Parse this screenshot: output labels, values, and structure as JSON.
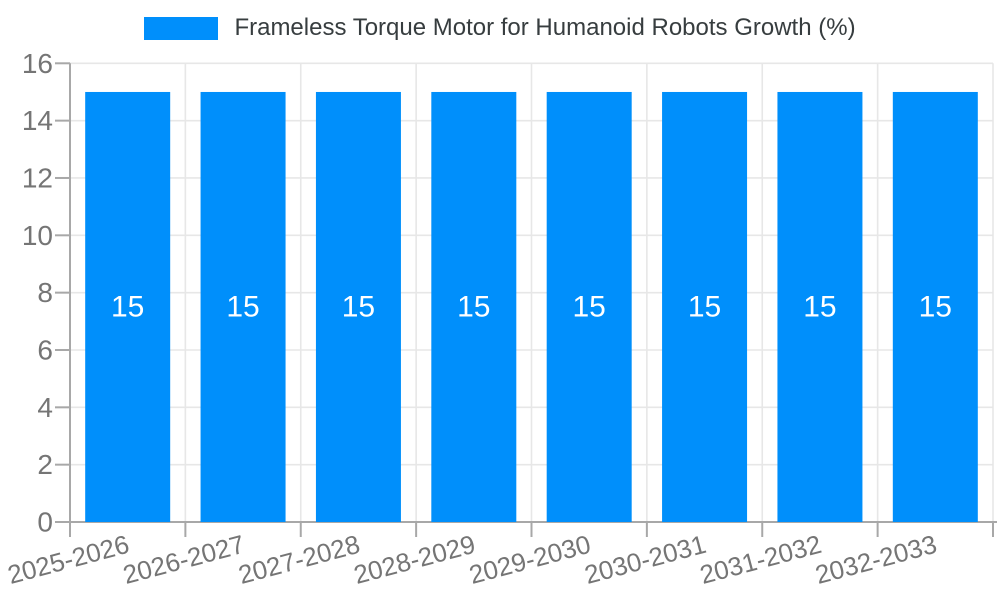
{
  "chart_data": {
    "type": "bar",
    "title": "Frameless Torque Motor for Humanoid Robots Growth (%)",
    "categories": [
      "2025-2026",
      "2026-2027",
      "2027-2028",
      "2028-2029",
      "2029-2030",
      "2030-2031",
      "2031-2032",
      "2032-2033"
    ],
    "series": [
      {
        "name": "Frameless Torque Motor for Humanoid Robots Growth (%)",
        "values": [
          15,
          15,
          15,
          15,
          15,
          15,
          15,
          15
        ]
      }
    ],
    "data_labels": [
      "15",
      "15",
      "15",
      "15",
      "15",
      "15",
      "15",
      "15"
    ],
    "xlabel": "",
    "ylabel": "",
    "ylim": [
      0,
      16
    ],
    "yticks": [
      0,
      2,
      4,
      6,
      8,
      10,
      12,
      14,
      16
    ],
    "grid": true,
    "legend_position": "top",
    "x_label_rotation_deg": -15,
    "colors": {
      "bar": "#008FFB",
      "data_label": "#FFFFFF",
      "axis_text": "#757575",
      "legend_text": "#373D3F",
      "grid_line": "#E7E7E7",
      "axis_line": "#A8A8A8"
    }
  }
}
